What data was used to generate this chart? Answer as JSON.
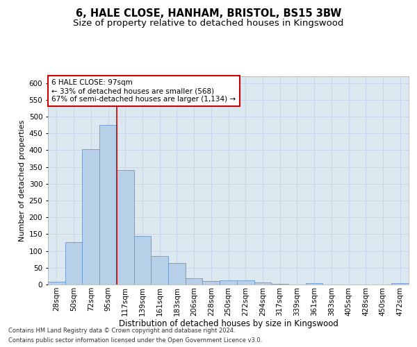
{
  "title1": "6, HALE CLOSE, HANHAM, BRISTOL, BS15 3BW",
  "title2": "Size of property relative to detached houses in Kingswood",
  "xlabel": "Distribution of detached houses by size in Kingswood",
  "ylabel": "Number of detached properties",
  "categories": [
    "28sqm",
    "50sqm",
    "72sqm",
    "95sqm",
    "117sqm",
    "139sqm",
    "161sqm",
    "183sqm",
    "206sqm",
    "228sqm",
    "250sqm",
    "272sqm",
    "294sqm",
    "317sqm",
    "339sqm",
    "361sqm",
    "383sqm",
    "405sqm",
    "428sqm",
    "450sqm",
    "472sqm"
  ],
  "values": [
    8,
    127,
    404,
    476,
    340,
    145,
    85,
    65,
    18,
    10,
    13,
    13,
    6,
    3,
    0,
    4,
    0,
    0,
    0,
    0,
    4
  ],
  "bar_color": "#b8cfe8",
  "bar_edge_color": "#6699cc",
  "vline_x": 3.5,
  "vline_color": "#cc0000",
  "annotation_text": "6 HALE CLOSE: 97sqm\n← 33% of detached houses are smaller (568)\n67% of semi-detached houses are larger (1,134) →",
  "annotation_box_color": "#ffffff",
  "annotation_box_edge_color": "#cc0000",
  "ylim": [
    0,
    620
  ],
  "yticks": [
    0,
    50,
    100,
    150,
    200,
    250,
    300,
    350,
    400,
    450,
    500,
    550,
    600
  ],
  "grid_color": "#c8d4e8",
  "background_color": "#dce8f0",
  "footer1": "Contains HM Land Registry data © Crown copyright and database right 2024.",
  "footer2": "Contains public sector information licensed under the Open Government Licence v3.0.",
  "title1_fontsize": 10.5,
  "title2_fontsize": 9.5,
  "xlabel_fontsize": 8.5,
  "ylabel_fontsize": 8,
  "tick_fontsize": 7.5,
  "footer_fontsize": 6.0
}
